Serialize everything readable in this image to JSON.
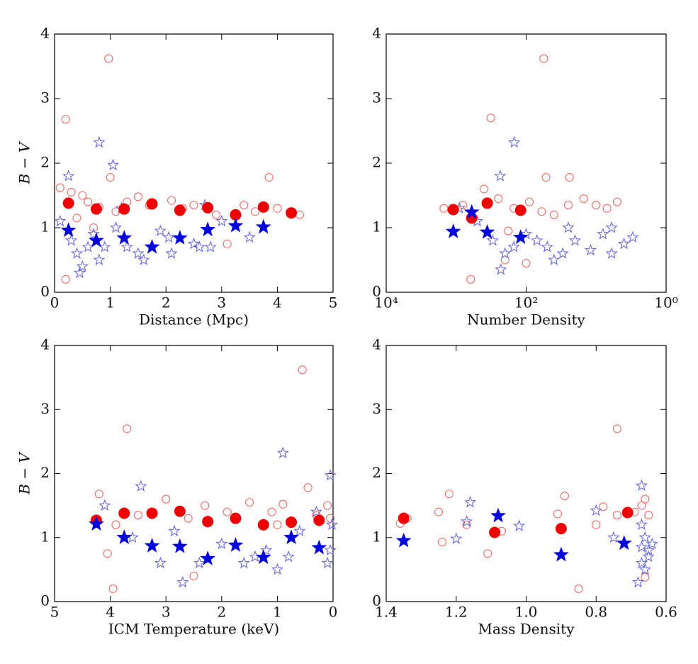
{
  "chart_data": [
    {
      "type": "scatter",
      "xlabel": "Distance (Mpc)",
      "ylabel": "B − V",
      "xlim": [
        0,
        5
      ],
      "ylim": [
        0,
        4
      ],
      "xticks": [
        0,
        1,
        2,
        3,
        4,
        5
      ],
      "yticks": [
        0,
        1,
        2,
        3,
        4
      ],
      "series": [
        {
          "marker": "circle",
          "filled": false,
          "color": "#f06a6a",
          "x": [
            0.97,
            0.2,
            0.2,
            3.85,
            1.0,
            0.1,
            0.3,
            0.5,
            0.6,
            0.8,
            1.1,
            1.3,
            1.5,
            1.7,
            2.1,
            2.3,
            2.5,
            3.1,
            3.4,
            3.6,
            4.0,
            4.4,
            0.4,
            0.7,
            2.9
          ],
          "values": [
            3.62,
            2.68,
            0.2,
            1.78,
            1.78,
            1.62,
            1.55,
            1.5,
            1.4,
            1.32,
            1.25,
            1.4,
            1.48,
            1.35,
            1.42,
            1.3,
            1.35,
            0.75,
            1.35,
            1.25,
            1.3,
            1.2,
            1.15,
            1.0,
            1.2
          ]
        },
        {
          "marker": "star",
          "filled": false,
          "color": "#6a6ae0",
          "x": [
            0.8,
            1.05,
            0.25,
            0.1,
            0.3,
            0.4,
            0.45,
            0.5,
            0.6,
            0.7,
            0.8,
            0.9,
            1.1,
            1.3,
            1.5,
            1.6,
            1.9,
            2.05,
            2.1,
            2.5,
            2.6,
            2.8,
            3.0,
            3.5,
            1.2,
            2.7
          ],
          "values": [
            2.32,
            1.97,
            1.8,
            1.1,
            0.8,
            0.6,
            0.3,
            0.4,
            0.7,
            0.9,
            0.5,
            0.7,
            1.0,
            0.7,
            0.6,
            0.5,
            0.95,
            0.85,
            0.6,
            0.75,
            0.7,
            0.7,
            1.1,
            0.85,
            1.3,
            1.35
          ]
        },
        {
          "marker": "circle",
          "filled": true,
          "color": "#ee0000",
          "x": [
            0.25,
            0.75,
            1.25,
            1.75,
            2.25,
            2.75,
            3.25,
            3.75,
            4.25
          ],
          "values": [
            1.38,
            1.29,
            1.29,
            1.37,
            1.27,
            1.31,
            1.2,
            1.32,
            1.23
          ]
        },
        {
          "marker": "star",
          "filled": true,
          "color": "#0000dd",
          "x": [
            0.25,
            0.75,
            1.25,
            1.75,
            2.25,
            2.75,
            3.25,
            3.75
          ],
          "values": [
            0.96,
            0.8,
            0.84,
            0.7,
            0.84,
            0.97,
            1.03,
            1.01
          ]
        }
      ]
    },
    {
      "type": "scatter",
      "xlabel": "Number Density",
      "xscale": "log",
      "xlim": [
        10000,
        1
      ],
      "ylim": [
        0,
        4
      ],
      "xticks": [
        {
          "value": 10000,
          "label": "10⁴"
        },
        {
          "value": 100,
          "label": "10²"
        },
        {
          "value": 1,
          "label": "10⁰"
        }
      ],
      "yticks": [
        0,
        1,
        2,
        3,
        4
      ],
      "series": [
        {
          "marker": "circle",
          "filled": false,
          "color": "#f06a6a",
          "x": [
            56,
            320,
            620,
            24,
            52,
            1500,
            800,
            400,
            250,
            150,
            90,
            60,
            40,
            25,
            15,
            10,
            7,
            5,
            180,
            100,
            200
          ],
          "values": [
            3.62,
            2.7,
            0.2,
            1.78,
            1.78,
            1.3,
            1.35,
            1.6,
            1.45,
            1.3,
            1.4,
            1.25,
            1.2,
            1.35,
            1.45,
            1.35,
            1.3,
            1.4,
            0.95,
            0.45,
            0.5
          ]
        },
        {
          "marker": "star",
          "filled": false,
          "color": "#6a6ae0",
          "x": [
            148,
            235,
            230,
            900,
            500,
            300,
            200,
            150,
            100,
            70,
            50,
            30,
            20,
            12,
            8,
            6,
            4,
            3,
            6,
            40,
            25
          ],
          "values": [
            2.32,
            1.8,
            0.35,
            1.3,
            1.1,
            0.8,
            0.6,
            0.7,
            0.9,
            0.8,
            0.7,
            0.6,
            0.8,
            0.65,
            0.9,
            0.6,
            0.75,
            0.85,
            1.0,
            0.5,
            1.0
          ]
        },
        {
          "marker": "circle",
          "filled": true,
          "color": "#ee0000",
          "x": [
            1100,
            600,
            360,
            120
          ],
          "values": [
            1.28,
            1.15,
            1.38,
            1.27
          ]
        },
        {
          "marker": "star",
          "filled": true,
          "color": "#0000dd",
          "x": [
            1100,
            600,
            360,
            120
          ],
          "values": [
            0.94,
            1.24,
            0.93,
            0.85
          ]
        }
      ]
    },
    {
      "type": "scatter",
      "xlabel": "ICM Temperature (keV)",
      "ylabel": "B − V",
      "xlim": [
        5,
        0
      ],
      "ylim": [
        0,
        4
      ],
      "xticks": [
        5,
        4,
        3,
        2,
        1,
        0
      ],
      "yticks": [
        0,
        1,
        2,
        3,
        4
      ],
      "series": [
        {
          "marker": "circle",
          "filled": false,
          "color": "#f06a6a",
          "x": [
            0.55,
            3.7,
            3.95,
            0.45,
            4.2,
            3.9,
            3.5,
            3.0,
            2.6,
            2.3,
            1.9,
            1.5,
            1.1,
            0.9,
            0.3,
            0.1,
            4.05,
            2.5,
            1.0,
            0.05
          ],
          "values": [
            3.62,
            2.7,
            0.2,
            1.78,
            1.68,
            1.2,
            1.35,
            1.6,
            1.3,
            1.5,
            1.4,
            1.55,
            1.4,
            1.52,
            1.35,
            1.5,
            0.75,
            0.4,
            1.2,
            1.3
          ]
        },
        {
          "marker": "star",
          "filled": false,
          "color": "#6a6ae0",
          "x": [
            0.9,
            0.05,
            3.45,
            4.1,
            3.6,
            3.1,
            2.7,
            2.4,
            2.0,
            1.6,
            1.4,
            1.0,
            0.8,
            0.6,
            0.3,
            0.1,
            0.05,
            2.85,
            1.2,
            0.02
          ],
          "values": [
            2.32,
            1.97,
            1.8,
            1.5,
            1.0,
            0.6,
            0.3,
            0.6,
            0.9,
            0.6,
            0.7,
            0.5,
            0.7,
            1.1,
            1.4,
            0.6,
            0.8,
            1.1,
            0.8,
            1.2
          ]
        },
        {
          "marker": "circle",
          "filled": true,
          "color": "#ee0000",
          "x": [
            4.25,
            3.75,
            3.25,
            2.75,
            2.25,
            1.75,
            1.25,
            0.75,
            0.25
          ],
          "values": [
            1.27,
            1.38,
            1.38,
            1.41,
            1.25,
            1.3,
            1.2,
            1.24,
            1.27
          ]
        },
        {
          "marker": "star",
          "filled": true,
          "color": "#0000dd",
          "x": [
            4.25,
            3.75,
            3.25,
            2.75,
            2.25,
            1.75,
            1.25,
            0.75,
            0.25
          ],
          "values": [
            1.21,
            1.0,
            0.87,
            0.86,
            0.67,
            0.88,
            0.69,
            1.0,
            0.84
          ]
        }
      ]
    },
    {
      "type": "scatter",
      "xlabel": "Mass Density",
      "xlim": [
        1.4,
        0.6
      ],
      "ylim": [
        0,
        4
      ],
      "xticks": [
        1.4,
        1.2,
        {
          "value": 1,
          "label": "1.0"
        },
        0.8,
        0.6
      ],
      "yticks": [
        0,
        1,
        2,
        3,
        4
      ],
      "series": [
        {
          "marker": "circle",
          "filled": false,
          "color": "#f06a6a",
          "x": [
            0.74,
            0.85,
            1.22,
            1.36,
            1.34,
            1.25,
            1.17,
            1.11,
            1.07,
            0.91,
            0.89,
            0.8,
            0.78,
            0.74,
            0.69,
            0.67,
            0.66,
            0.65,
            0.66,
            1.24
          ],
          "values": [
            2.7,
            0.2,
            1.68,
            1.22,
            1.3,
            1.4,
            1.2,
            0.75,
            1.1,
            1.37,
            1.65,
            1.2,
            1.48,
            1.35,
            1.4,
            1.5,
            1.6,
            1.35,
            0.38,
            0.93
          ]
        },
        {
          "marker": "star",
          "filled": false,
          "color": "#6a6ae0",
          "x": [
            0.67,
            1.16,
            1.17,
            1.2,
            1.02,
            0.8,
            0.75,
            0.67,
            0.66,
            0.65,
            0.67,
            0.68,
            0.66,
            0.64,
            0.67,
            0.65
          ],
          "values": [
            1.81,
            1.55,
            1.25,
            0.98,
            1.18,
            1.42,
            1.0,
            1.2,
            1.0,
            0.8,
            0.6,
            0.3,
            0.5,
            0.9,
            0.85,
            0.7
          ]
        },
        {
          "marker": "circle",
          "filled": true,
          "color": "#ee0000",
          "x": [
            1.35,
            1.09,
            0.9,
            0.71
          ],
          "values": [
            1.3,
            1.08,
            1.14,
            1.39
          ]
        },
        {
          "marker": "star",
          "filled": true,
          "color": "#0000dd",
          "x": [
            1.35,
            1.08,
            0.9,
            0.72
          ],
          "values": [
            0.95,
            1.34,
            0.73,
            0.91
          ]
        }
      ]
    }
  ]
}
